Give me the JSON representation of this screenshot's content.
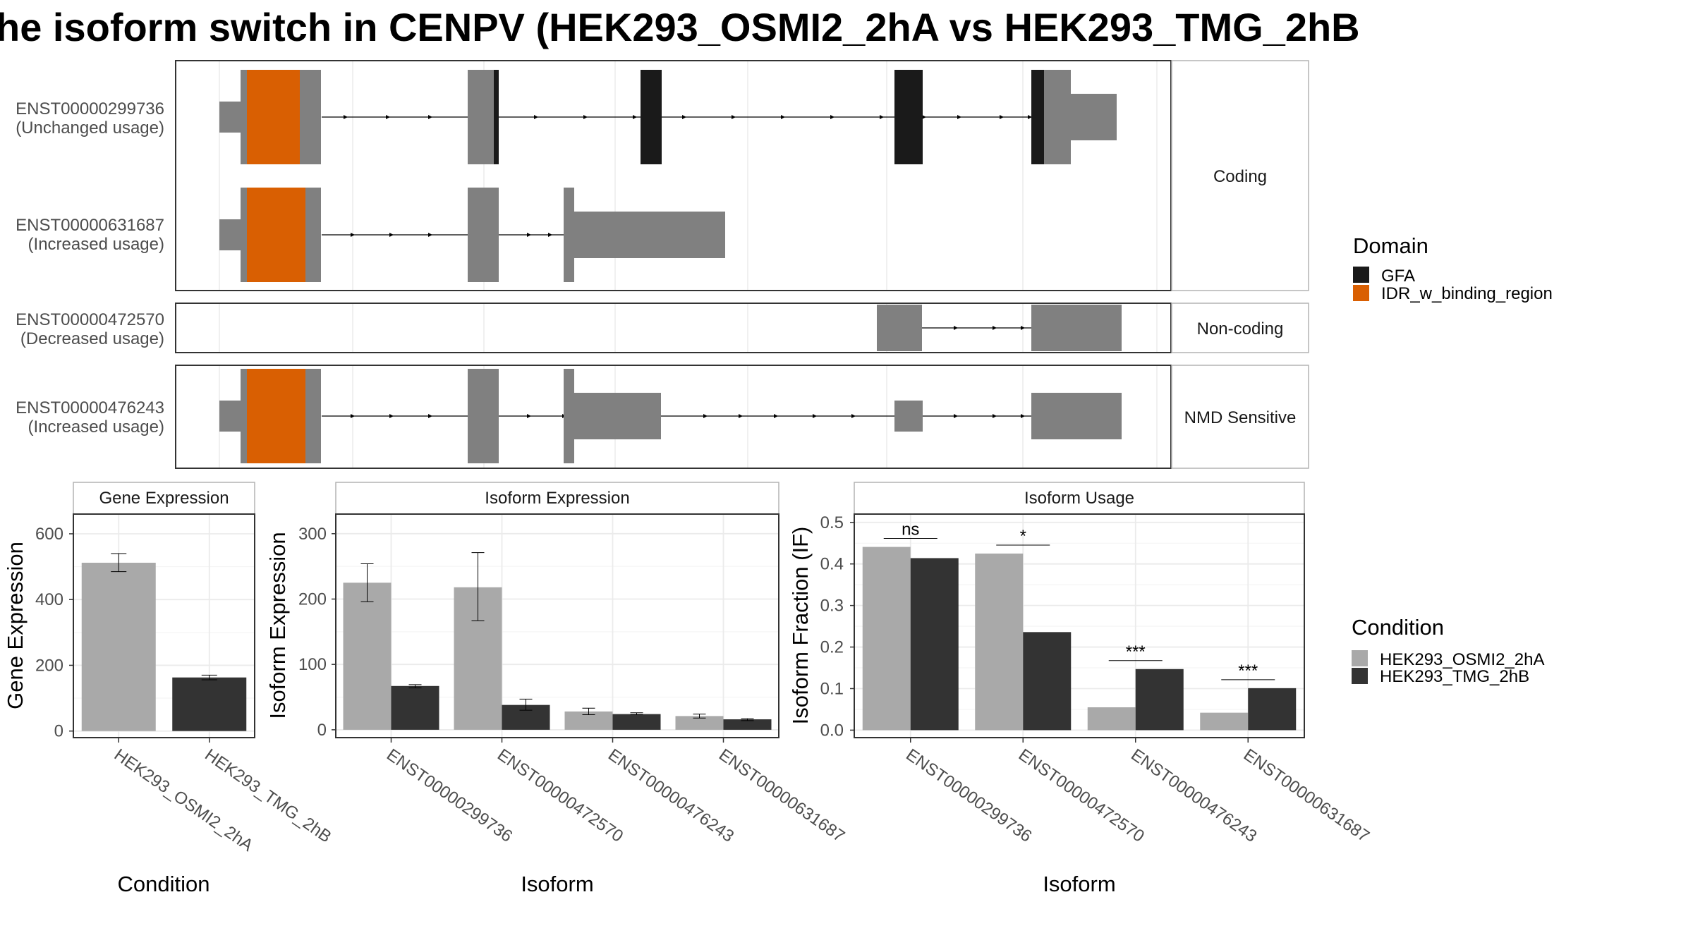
{
  "title": "he isoform switch in CENPV (HEK293_OSMI2_2hA vs HEK293_TMG_2hB",
  "colors": {
    "grey_exon": "#808080",
    "domain_gfa": "#1a1a1a",
    "domain_idr": "#d95f02",
    "cond_a": "#a9a9a9",
    "cond_b": "#333333",
    "grid": "#ebebeb",
    "strip_bg": "#ffffff",
    "panel_border": "#333333"
  },
  "structure": {
    "groups": [
      {
        "label": "Coding"
      },
      {
        "label": "Non-coding"
      },
      {
        "label": "NMD Sensitive"
      }
    ],
    "transcripts": [
      {
        "id": "ENST00000299736",
        "usage": "(Unchanged usage)",
        "group": 0
      },
      {
        "id": "ENST00000631687",
        "usage": "(Increased usage)",
        "group": 0
      },
      {
        "id": "ENST00000472570",
        "usage": "(Decreased usage)",
        "group": 1
      },
      {
        "id": "ENST00000476243",
        "usage": "(Increased usage)",
        "group": 2
      }
    ]
  },
  "legend_domain": {
    "title": "Domain",
    "items": [
      {
        "label": "GFA",
        "color": "#1a1a1a"
      },
      {
        "label": "IDR_w_binding_region",
        "color": "#d95f02"
      }
    ]
  },
  "legend_condition": {
    "title": "Condition",
    "items": [
      {
        "label": "HEK293_OSMI2_2hA",
        "color": "#a9a9a9"
      },
      {
        "label": "HEK293_TMG_2hB",
        "color": "#333333"
      }
    ]
  },
  "chart_data": [
    {
      "type": "bar",
      "title": "Gene Expression",
      "xlabel": "Condition",
      "ylabel": "Gene Expression",
      "categories": [
        "HEK293_OSMI2_2hA",
        "HEK293_TMG_2hB"
      ],
      "values": [
        512,
        163
      ],
      "err_low": [
        485,
        156
      ],
      "err_high": [
        540,
        170
      ],
      "ylim": [
        -20,
        660
      ],
      "yticks": [
        0,
        200,
        400,
        600
      ],
      "grid": true
    },
    {
      "type": "bar",
      "title": "Isoform Expression",
      "xlabel": "Isoform",
      "ylabel": "Isoform Expression",
      "categories": [
        "ENST00000299736",
        "ENST00000472570",
        "ENST00000476243",
        "ENST00000631687"
      ],
      "series": [
        {
          "name": "HEK293_OSMI2_2hA",
          "values": [
            225,
            218,
            28,
            21
          ],
          "err_low": [
            196,
            167,
            23,
            18
          ],
          "err_high": [
            254,
            271,
            33,
            24
          ]
        },
        {
          "name": "HEK293_TMG_2hB",
          "values": [
            67,
            38,
            24,
            16
          ],
          "err_low": [
            64,
            30,
            23,
            14
          ],
          "err_high": [
            69,
            47,
            26,
            17
          ]
        }
      ],
      "ylim": [
        -12,
        330
      ],
      "yticks": [
        0,
        100,
        200,
        300
      ],
      "grid": true
    },
    {
      "type": "bar",
      "title": "Isoform Usage",
      "xlabel": "Isoform",
      "ylabel": "Isoform Fraction (IF)",
      "categories": [
        "ENST00000299736",
        "ENST00000472570",
        "ENST00000476243",
        "ENST00000631687"
      ],
      "series": [
        {
          "name": "HEK293_OSMI2_2hA",
          "values": [
            0.441,
            0.425,
            0.055,
            0.042
          ]
        },
        {
          "name": "HEK293_TMG_2hB",
          "values": [
            0.414,
            0.236,
            0.147,
            0.101
          ]
        }
      ],
      "significance": [
        "ns",
        "*",
        "***",
        "***"
      ],
      "ylim": [
        -0.018,
        0.52
      ],
      "yticks": [
        0.0,
        0.1,
        0.2,
        0.3,
        0.4,
        0.5
      ],
      "ytick_labels": [
        "0.0",
        "0.1",
        "0.2",
        "0.3",
        "0.4",
        "0.5"
      ],
      "grid": true
    }
  ]
}
